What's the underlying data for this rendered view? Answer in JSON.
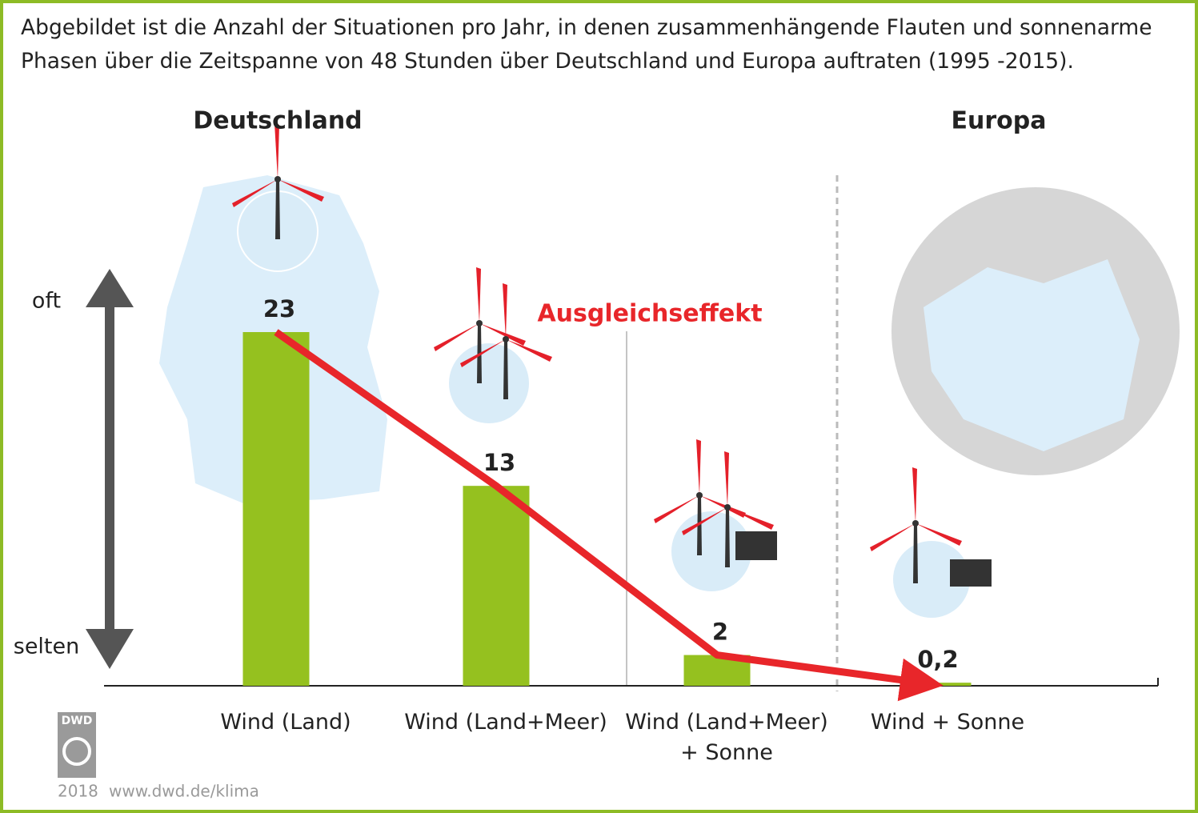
{
  "chart_data": {
    "type": "bar",
    "title": "Abgebildet ist die Anzahl der Situationen pro Jahr, in denen zusammenhängende Flauten und sonnenarme Phasen über die Zeitspanne von 48 Stunden über Deutschland und Europa auftraten (1995 -2015).",
    "categories": [
      "Wind (Land)",
      "Wind (Land+Meer)",
      "Wind (Land+Meer)\n+ Sonne",
      "Wind + Sonne"
    ],
    "values": [
      23,
      13,
      2,
      0.2
    ],
    "value_labels": [
      "23",
      "13",
      "2",
      "0,2"
    ],
    "color": "#95c11f",
    "ylim": [
      0,
      23
    ],
    "y_axis_labels": {
      "top": "oft",
      "bottom": "selten"
    },
    "sections": [
      "Deutschland",
      "Europa"
    ],
    "annotation": "Ausgleichseffekt",
    "trend_color": "#e8262a"
  },
  "footer": {
    "logo": "DWD",
    "year": "2018",
    "url": "www.dwd.de/klima"
  }
}
